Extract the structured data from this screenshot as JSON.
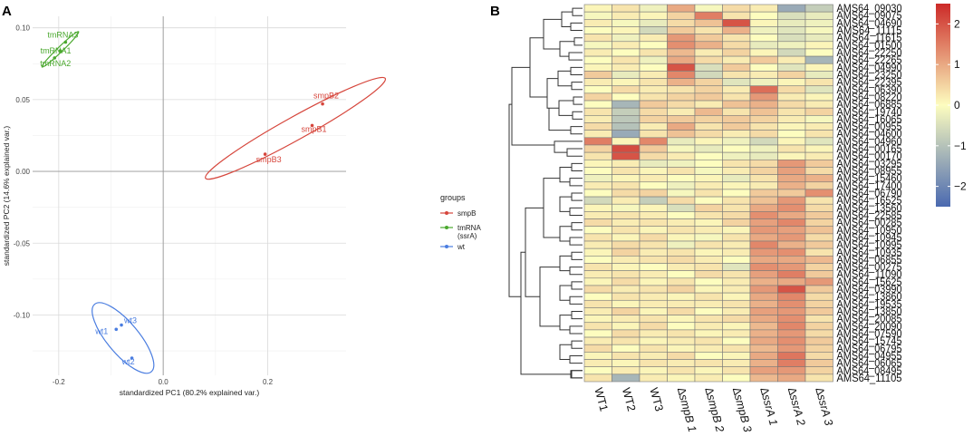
{
  "colors": {
    "smpB": "#d6463c",
    "tmRNA": "#4aa82e",
    "wt": "#4a7de0",
    "gridMajor": "#d9d9d9",
    "gridMinor": "#efefef",
    "zeroLine": "#9a9a9a",
    "heat_low": "#4a69b0",
    "heat_mid": "#fdfdbf",
    "heat_high": "#cc2a28"
  },
  "chart_data": [
    {
      "type": "scatter",
      "panel_label": "A",
      "xlabel": "standardized PC1 (80.2% explained var.)",
      "ylabel": "standardized PC2 (14.6% explained var.)",
      "xlim": [
        -0.25,
        0.35
      ],
      "ylim": [
        -0.142,
        0.108
      ],
      "xticks": [
        -0.2,
        0.0,
        0.2
      ],
      "xtick_labels": [
        "-0.2",
        "0.0",
        "0.2"
      ],
      "yticks": [
        -0.1,
        -0.05,
        0.0,
        0.05,
        0.1
      ],
      "ytick_labels": [
        "-0.10",
        "-0.05",
        "0.00",
        "0.05",
        "0.10"
      ],
      "legend": {
        "title": "groups",
        "position": "right",
        "entries": [
          {
            "key": "smpB",
            "label": "smpB"
          },
          {
            "key": "tmRNA",
            "label": "tmRNA",
            "label2": "(ssrA)"
          },
          {
            "key": "wt",
            "label": "wt"
          }
        ]
      },
      "series": [
        {
          "name": "smpB",
          "key": "smpB",
          "points": [
            {
              "label": "smpB2",
              "x": 0.305,
              "y": 0.047
            },
            {
              "label": "smpB1",
              "x": 0.285,
              "y": 0.032
            },
            {
              "label": "smpB3",
              "x": 0.195,
              "y": 0.012
            }
          ]
        },
        {
          "name": "tmRNA (ssrA)",
          "key": "tmRNA",
          "points": [
            {
              "label": "tmRNA3",
              "x": -0.187,
              "y": 0.09
            },
            {
              "label": "tmRNA1",
              "x": -0.197,
              "y": 0.084
            },
            {
              "label": "tmRNA2",
              "x": -0.208,
              "y": 0.079
            }
          ]
        },
        {
          "name": "wt",
          "key": "wt",
          "points": [
            {
              "label": "wt3",
              "x": -0.08,
              "y": -0.107
            },
            {
              "label": "wt1",
              "x": -0.09,
              "y": -0.11
            },
            {
              "label": "wt2",
              "x": -0.06,
              "y": -0.13
            }
          ]
        }
      ],
      "ellipses": [
        {
          "key": "smpB",
          "cx": 0.253,
          "cy": 0.03,
          "rx": 0.105,
          "ry": 0.008,
          "angle": 29
        },
        {
          "key": "tmRNA",
          "cx": -0.197,
          "cy": 0.085,
          "rx": 0.026,
          "ry": 0.0018,
          "angle": 44
        },
        {
          "key": "wt",
          "cx": -0.077,
          "cy": -0.116,
          "rx": 0.045,
          "ry": 0.011,
          "angle": -50
        }
      ]
    },
    {
      "type": "heatmap",
      "panel_label": "B",
      "columns": [
        "WT1",
        "WT2",
        "WT3",
        "∆smpB 1",
        "∆smpB 2",
        "∆smpB 3",
        "∆ssrA 1",
        "∆ssrA 2",
        "∆ssrA 3"
      ],
      "rows": [
        "AMS64_09030",
        "AMS64_09075",
        "AMS64_04690",
        "AMS64_11115",
        "AMS64_11615",
        "AMS64_01500",
        "AMS64_22250",
        "AMS64_22265",
        "AMS64_04990",
        "AMS64_23250",
        "AMS64_22395",
        "AMS64_06390",
        "AMS64_08220",
        "AMS64_06885",
        "AMS64_19740",
        "AMS64_16065",
        "AMS64_00955",
        "AMS64_04600",
        "AMS64_04960",
        "AMS64_00165",
        "AMS64_00170",
        "AMS64_03295",
        "AMS64_08955",
        "AMS64_15460",
        "AMS64_17400",
        "AMS64_06790",
        "AMS64_16525",
        "AMS64_13560",
        "AMS64_22585",
        "AMS64_00285",
        "AMS64_10950",
        "AMS64_10945",
        "AMS64_10995",
        "AMS64_10935",
        "AMS64_06855",
        "AMS64_00275",
        "AMS64_11090",
        "AMS64_15625",
        "AMS64_03990",
        "AMS64_13860",
        "AMS64_19535",
        "AMS64_13850",
        "AMS64_20085",
        "AMS64_20090",
        "AMS64_07590",
        "AMS64_15745",
        "AMS64_06795",
        "AMS64_04955",
        "AMS64_06065",
        "AMS64_08495",
        "AMS64_11105"
      ],
      "values": [
        [
          0.1,
          0.3,
          -0.2,
          1.0,
          -0.1,
          0.4,
          0.2,
          -1.4,
          -0.8
        ],
        [
          -0.1,
          0.2,
          0.1,
          0.5,
          1.5,
          0.3,
          0.0,
          -0.5,
          -0.3
        ],
        [
          0.2,
          -0.1,
          -0.3,
          0.4,
          0.7,
          2.0,
          0.1,
          -0.3,
          -0.2
        ],
        [
          0.0,
          0.1,
          -0.6,
          0.6,
          0.3,
          0.9,
          -0.2,
          -0.4,
          -0.1
        ],
        [
          0.3,
          -0.2,
          0.2,
          1.2,
          0.6,
          0.3,
          0.0,
          -0.5,
          -0.3
        ],
        [
          -0.1,
          0.2,
          0.0,
          1.3,
          0.9,
          0.4,
          -0.3,
          -0.2,
          0.1
        ],
        [
          0.2,
          0.0,
          0.3,
          0.8,
          0.2,
          0.5,
          0.1,
          -0.6,
          0.0
        ],
        [
          0.0,
          0.3,
          -0.2,
          1.0,
          0.4,
          0.2,
          0.6,
          0.2,
          -1.2
        ],
        [
          0.1,
          0.2,
          0.0,
          2.0,
          -0.5,
          0.6,
          0.0,
          -0.4,
          0.1
        ],
        [
          0.6,
          -0.3,
          0.2,
          1.4,
          -0.6,
          0.3,
          0.2,
          0.5,
          -0.3
        ],
        [
          0.2,
          0.1,
          0.3,
          0.9,
          0.5,
          -0.4,
          -0.2,
          0.1,
          0.3
        ],
        [
          0.0,
          0.4,
          0.2,
          0.3,
          0.5,
          0.2,
          1.7,
          0.4,
          -0.4
        ],
        [
          0.5,
          0.0,
          0.3,
          0.5,
          0.6,
          0.3,
          1.2,
          0.2,
          0.1
        ],
        [
          0.0,
          -1.2,
          0.6,
          0.4,
          0.2,
          0.7,
          0.9,
          0.4,
          0.2
        ],
        [
          0.3,
          -0.8,
          0.4,
          0.2,
          0.8,
          0.3,
          0.7,
          0.3,
          0.5
        ],
        [
          0.2,
          -0.9,
          0.5,
          0.6,
          0.5,
          0.6,
          0.5,
          0.2,
          -0.1
        ],
        [
          0.4,
          -1.0,
          0.2,
          1.0,
          0.3,
          0.6,
          0.3,
          0.1,
          0.2
        ],
        [
          0.2,
          -1.4,
          0.3,
          0.7,
          0.4,
          0.2,
          0.4,
          0.0,
          0.3
        ],
        [
          1.5,
          0.1,
          1.4,
          -0.3,
          0.1,
          -0.2,
          -0.6,
          0.1,
          -0.4
        ],
        [
          0.5,
          2.1,
          0.6,
          -0.1,
          -0.3,
          0.0,
          -0.2,
          0.3,
          0.1
        ],
        [
          0.3,
          2.0,
          0.4,
          0.2,
          0.0,
          -0.2,
          -0.3,
          0.1,
          0.2
        ],
        [
          0.1,
          0.2,
          -0.3,
          -0.2,
          0.0,
          0.3,
          0.4,
          1.2,
          0.6
        ],
        [
          0.0,
          0.3,
          0.1,
          0.3,
          -0.1,
          0.2,
          0.5,
          1.1,
          0.4
        ],
        [
          -0.2,
          0.1,
          0.2,
          0.0,
          0.1,
          -0.3,
          0.3,
          1.0,
          0.9
        ],
        [
          0.2,
          0.3,
          0.0,
          -0.2,
          0.2,
          0.1,
          0.2,
          0.9,
          0.5
        ],
        [
          0.0,
          0.4,
          0.5,
          -0.1,
          0.3,
          0.0,
          0.6,
          0.6,
          1.3
        ],
        [
          -0.6,
          0.2,
          -0.8,
          0.4,
          0.0,
          0.3,
          0.7,
          1.2,
          0.3
        ],
        [
          0.1,
          -0.1,
          0.1,
          -0.5,
          0.5,
          0.3,
          1.0,
          1.3,
          0.4
        ],
        [
          0.2,
          0.3,
          0.2,
          0.0,
          0.3,
          0.4,
          1.3,
          1.0,
          0.6
        ],
        [
          0.4,
          0.2,
          0.3,
          0.2,
          0.1,
          0.5,
          1.1,
          1.4,
          0.5
        ],
        [
          0.0,
          0.3,
          0.1,
          0.3,
          0.2,
          0.1,
          1.2,
          1.1,
          0.7
        ],
        [
          0.3,
          0.1,
          0.4,
          0.1,
          -0.1,
          0.3,
          1.0,
          1.2,
          0.4
        ],
        [
          0.2,
          0.4,
          0.3,
          -0.2,
          0.3,
          0.2,
          1.4,
          0.9,
          0.6
        ],
        [
          0.1,
          0.5,
          0.2,
          0.3,
          0.1,
          0.2,
          1.2,
          1.3,
          0.3
        ],
        [
          0.0,
          0.2,
          0.3,
          0.4,
          0.2,
          0.0,
          1.0,
          1.0,
          0.8
        ],
        [
          0.3,
          0.1,
          0.0,
          0.2,
          0.3,
          -0.4,
          1.3,
          1.2,
          0.5
        ],
        [
          0.2,
          0.3,
          0.2,
          0.0,
          0.4,
          0.3,
          1.1,
          1.5,
          0.6
        ],
        [
          0.1,
          0.4,
          0.1,
          0.3,
          0.0,
          0.2,
          0.9,
          1.0,
          1.2
        ],
        [
          0.4,
          0.2,
          0.3,
          0.5,
          0.1,
          0.2,
          1.2,
          2.0,
          0.6
        ],
        [
          0.0,
          0.3,
          0.2,
          0.1,
          0.3,
          0.1,
          1.0,
          1.4,
          0.4
        ],
        [
          0.3,
          0.1,
          0.2,
          0.2,
          0.2,
          0.3,
          0.9,
          1.3,
          0.5
        ],
        [
          0.2,
          0.5,
          0.1,
          0.4,
          0.0,
          0.2,
          1.1,
          1.2,
          0.6
        ],
        [
          0.1,
          0.2,
          0.3,
          0.1,
          0.3,
          0.4,
          1.0,
          1.3,
          0.3
        ],
        [
          0.3,
          0.1,
          0.4,
          0.0,
          0.2,
          0.1,
          0.8,
          1.4,
          0.5
        ],
        [
          0.0,
          0.4,
          0.2,
          0.3,
          0.1,
          0.2,
          0.9,
          1.2,
          0.4
        ],
        [
          0.2,
          0.3,
          0.1,
          0.2,
          0.3,
          0.0,
          1.0,
          1.3,
          0.6
        ],
        [
          0.4,
          0.0,
          0.3,
          0.1,
          0.2,
          0.3,
          0.8,
          1.2,
          0.5
        ],
        [
          0.1,
          0.3,
          0.2,
          0.4,
          0.0,
          0.1,
          1.0,
          1.6,
          0.4
        ],
        [
          0.2,
          0.1,
          0.3,
          0.2,
          0.3,
          0.2,
          0.9,
          1.5,
          0.6
        ],
        [
          0.0,
          0.2,
          0.1,
          0.3,
          0.1,
          0.3,
          1.1,
          1.2,
          0.5
        ],
        [
          0.3,
          -1.2,
          0.2,
          0.1,
          0.2,
          0.0,
          0.8,
          1.0,
          0.3
        ]
      ],
      "colorbar": {
        "range": [
          -2.5,
          2.5
        ],
        "ticks": [
          2,
          1,
          0,
          -1,
          -2
        ],
        "tick_labels": [
          "2",
          "1",
          "0",
          "−1",
          "−2"
        ]
      }
    }
  ]
}
